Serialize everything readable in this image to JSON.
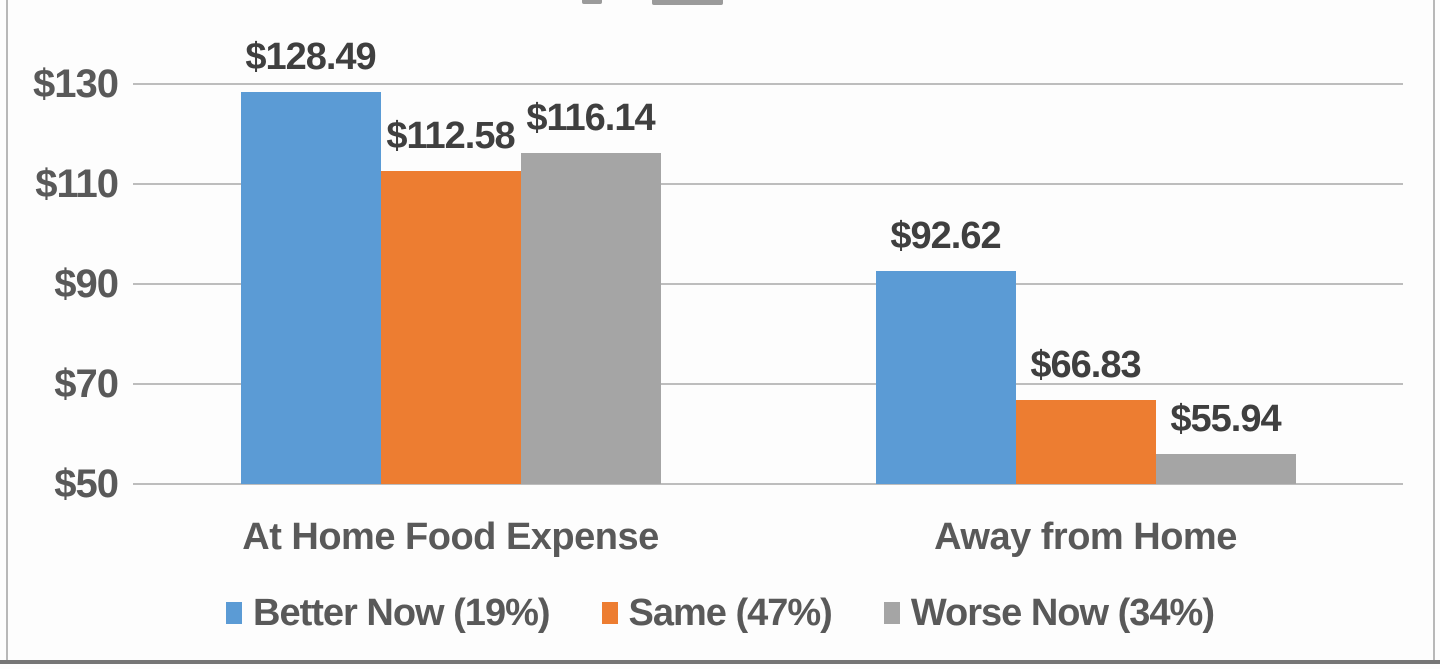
{
  "chart_data": {
    "type": "bar",
    "categories": [
      "At Home Food Expense",
      "Away from Home"
    ],
    "series": [
      {
        "name": "Better Now (19%)",
        "color": "#5B9BD5",
        "values": [
          128.49,
          92.62
        ],
        "data_labels": [
          "$128.49",
          "$92.62"
        ]
      },
      {
        "name": "Same (47%)",
        "color": "#ED7D31",
        "values": [
          112.58,
          66.83
        ],
        "data_labels": [
          "$112.58",
          "$66.83"
        ]
      },
      {
        "name": "Worse Now (34%)",
        "color": "#A5A5A5",
        "values": [
          116.14,
          55.94
        ],
        "data_labels": [
          "$116.14",
          "$55.94"
        ]
      }
    ],
    "y_axis": {
      "min": 50,
      "max": 130,
      "ticks": [
        {
          "label": "$50",
          "value": 50
        },
        {
          "label": "$70",
          "value": 70
        },
        {
          "label": "$90",
          "value": 90
        },
        {
          "label": "$110",
          "value": 110
        },
        {
          "label": "$130",
          "value": 130
        }
      ]
    },
    "grid": true,
    "legend_position": "bottom"
  },
  "colors": {
    "bar_blue": "#5B9BD5",
    "bar_orange": "#ED7D31",
    "bar_gray": "#A5A5A5",
    "data_label_text": "#3F3F3F",
    "axis_text": "#595959",
    "gridline": "#BDBDBD",
    "background": "#FDFDFD"
  }
}
